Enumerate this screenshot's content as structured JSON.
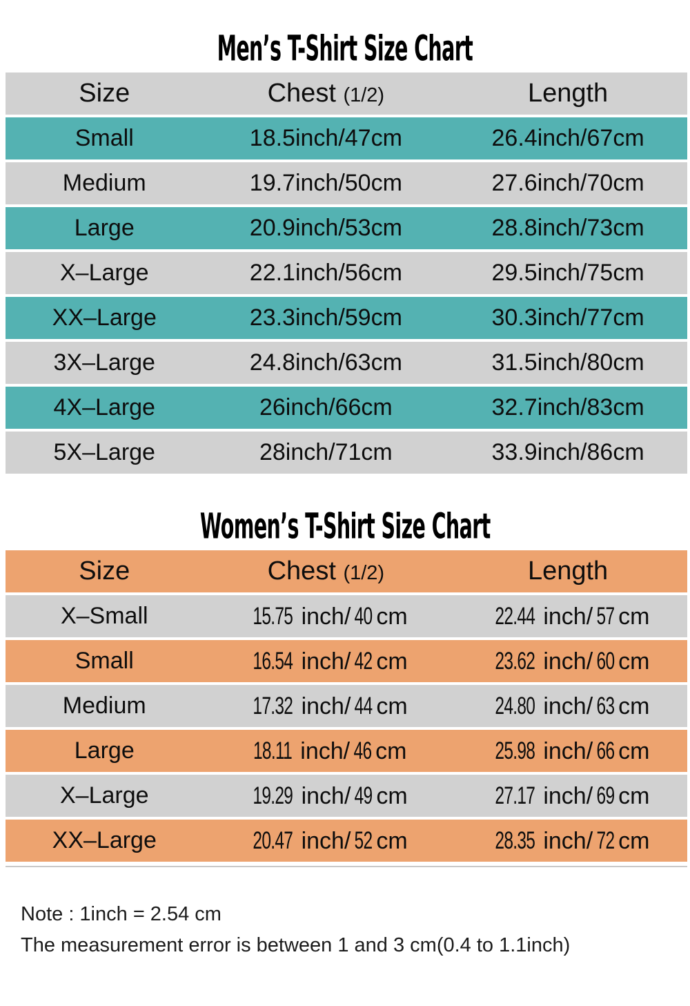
{
  "colors": {
    "mens_accent": "#54b2b2",
    "womens_accent": "#eda36f",
    "alt_row_gray": "#d1d1d1",
    "text": "#0d0d0d",
    "background": "#ffffff"
  },
  "mens_chart": {
    "title": "Men’s T-Shirt Size Chart",
    "header": {
      "size": "Size",
      "chest": "Chest",
      "chest_note": "(1/2)",
      "length": "Length"
    },
    "rows": [
      {
        "size": "Small",
        "chest": "18.5inch/47cm",
        "length": "26.4inch/67cm"
      },
      {
        "size": "Medium",
        "chest": "19.7inch/50cm",
        "length": "27.6inch/70cm"
      },
      {
        "size": "Large",
        "chest": "20.9inch/53cm",
        "length": "28.8inch/73cm"
      },
      {
        "size": "X–Large",
        "chest": "22.1inch/56cm",
        "length": "29.5inch/75cm"
      },
      {
        "size": "XX–Large",
        "chest": "23.3inch/59cm",
        "length": "30.3inch/77cm"
      },
      {
        "size": "3X–Large",
        "chest": "24.8inch/63cm",
        "length": "31.5inch/80cm"
      },
      {
        "size": "4X–Large",
        "chest": "26inch/66cm",
        "length": "32.7inch/83cm"
      },
      {
        "size": "5X–Large",
        "chest": "28inch/71cm",
        "length": "33.9inch/86cm"
      }
    ]
  },
  "womens_chart": {
    "title": "Women’s T-Shirt Size Chart",
    "header": {
      "size": "Size",
      "chest": "Chest",
      "chest_note": "(1/2)",
      "length": "Length"
    },
    "units": {
      "inch": "inch/",
      "cm": "cm"
    },
    "rows": [
      {
        "size": "X–Small",
        "chest_in": "15.75",
        "chest_cm": "40",
        "length_in": "22.44",
        "length_cm": "57"
      },
      {
        "size": "Small",
        "chest_in": "16.54",
        "chest_cm": "42",
        "length_in": "23.62",
        "length_cm": "60"
      },
      {
        "size": "Medium",
        "chest_in": "17.32",
        "chest_cm": "44",
        "length_in": "24.80",
        "length_cm": "63"
      },
      {
        "size": "Large",
        "chest_in": "18.11",
        "chest_cm": "46",
        "length_in": "25.98",
        "length_cm": "66"
      },
      {
        "size": "X–Large",
        "chest_in": "19.29",
        "chest_cm": "49",
        "length_in": "27.17",
        "length_cm": "69"
      },
      {
        "size": "XX–Large",
        "chest_in": "20.47",
        "chest_cm": "52",
        "length_in": "28.35",
        "length_cm": "72"
      }
    ]
  },
  "notes": {
    "line1": "Note : 1inch = 2.54 cm",
    "line2": "The measurement error is between 1 and 3 cm(0.4 to 1.1inch)"
  },
  "chart_data": [
    {
      "type": "table",
      "title": "Men’s T-Shirt Size Chart",
      "columns": [
        "Size",
        "Chest (1/2)",
        "Length"
      ],
      "rows": [
        [
          "Small",
          "18.5inch/47cm",
          "26.4inch/67cm"
        ],
        [
          "Medium",
          "19.7inch/50cm",
          "27.6inch/70cm"
        ],
        [
          "Large",
          "20.9inch/53cm",
          "28.8inch/73cm"
        ],
        [
          "X–Large",
          "22.1inch/56cm",
          "29.5inch/75cm"
        ],
        [
          "XX–Large",
          "23.3inch/59cm",
          "30.3inch/77cm"
        ],
        [
          "3X–Large",
          "24.8inch/63cm",
          "31.5inch/80cm"
        ],
        [
          "4X–Large",
          "26inch/66cm",
          "32.7inch/83cm"
        ],
        [
          "5X–Large",
          "28inch/71cm",
          "33.9inch/86cm"
        ]
      ]
    },
    {
      "type": "table",
      "title": "Women’s T-Shirt Size Chart",
      "columns": [
        "Size",
        "Chest (1/2)",
        "Length"
      ],
      "rows": [
        [
          "X–Small",
          "15.75inch/ 40cm",
          "22.44inch/ 57cm"
        ],
        [
          "Small",
          "16.54inch/ 42cm",
          "23.62inch/ 60cm"
        ],
        [
          "Medium",
          "17.32inch/ 44cm",
          "24.80inch/ 63cm"
        ],
        [
          "Large",
          "18.11inch/ 46cm",
          "25.98inch/ 66cm"
        ],
        [
          "X–Large",
          "19.29inch/ 49cm",
          "27.17inch/ 69cm"
        ],
        [
          "XX–Large",
          "20.47inch/ 52cm",
          "28.35inch/ 72cm"
        ]
      ]
    }
  ]
}
